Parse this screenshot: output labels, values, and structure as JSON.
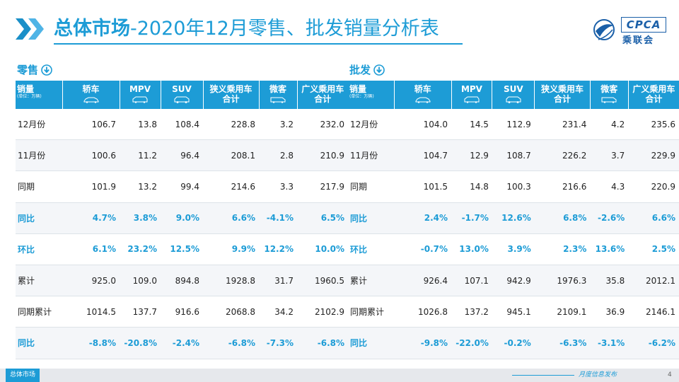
{
  "header": {
    "title_part1": "总体市场",
    "title_part2": "-2020年12月零售、批发销量分析表",
    "logo_text": "CPCA",
    "logo_sub": "乘联会"
  },
  "columns": {
    "first": "销量",
    "unit": "(单位：万辆)",
    "c1": "轿车",
    "c2": "MPV",
    "c3": "SUV",
    "c4a": "狭义乘用车",
    "c4b": "合计",
    "c5": "微客",
    "c6a": "广义乘用车",
    "c6b": "合计"
  },
  "retail": {
    "title": "零售",
    "rows": [
      {
        "label": "12月份",
        "v": [
          "106.7",
          "13.8",
          "108.4",
          "228.8",
          "3.2",
          "232.0"
        ]
      },
      {
        "label": "11月份",
        "v": [
          "100.6",
          "11.2",
          "96.4",
          "208.1",
          "2.8",
          "210.9"
        ]
      },
      {
        "label": "同期",
        "v": [
          "101.9",
          "13.2",
          "99.4",
          "214.6",
          "3.3",
          "217.9"
        ]
      },
      {
        "label": "同比",
        "v": [
          "4.7%",
          "3.8%",
          "9.0%",
          "6.6%",
          "-4.1%",
          "6.5%"
        ]
      },
      {
        "label": "环比",
        "v": [
          "6.1%",
          "23.2%",
          "12.5%",
          "9.9%",
          "12.2%",
          "10.0%"
        ]
      },
      {
        "label": "累计",
        "v": [
          "925.0",
          "109.0",
          "894.8",
          "1928.8",
          "31.7",
          "1960.5"
        ]
      },
      {
        "label": "同期累计",
        "v": [
          "1014.5",
          "137.7",
          "916.6",
          "2068.8",
          "34.2",
          "2102.9"
        ]
      },
      {
        "label": "同比",
        "v": [
          "-8.8%",
          "-20.8%",
          "-2.4%",
          "-6.8%",
          "-7.3%",
          "-6.8%"
        ]
      }
    ]
  },
  "wholesale": {
    "title": "批发",
    "rows": [
      {
        "label": "12月份",
        "v": [
          "104.0",
          "14.5",
          "112.9",
          "231.4",
          "4.2",
          "235.6"
        ]
      },
      {
        "label": "11月份",
        "v": [
          "104.7",
          "12.9",
          "108.7",
          "226.2",
          "3.7",
          "229.9"
        ]
      },
      {
        "label": "同期",
        "v": [
          "101.5",
          "14.8",
          "100.3",
          "216.6",
          "4.3",
          "220.9"
        ]
      },
      {
        "label": "同比",
        "v": [
          "2.4%",
          "-1.7%",
          "12.6%",
          "6.8%",
          "-2.6%",
          "6.6%"
        ]
      },
      {
        "label": "环比",
        "v": [
          "-0.7%",
          "13.0%",
          "3.9%",
          "2.3%",
          "13.6%",
          "2.5%"
        ]
      },
      {
        "label": "累计",
        "v": [
          "926.4",
          "107.1",
          "942.9",
          "1976.3",
          "35.8",
          "2012.1"
        ]
      },
      {
        "label": "同期累计",
        "v": [
          "1026.8",
          "137.2",
          "945.1",
          "2109.1",
          "36.9",
          "2146.1"
        ]
      },
      {
        "label": "同比",
        "v": [
          "-9.8%",
          "-22.0%",
          "-0.2%",
          "-6.3%",
          "-3.1%",
          "-6.2%"
        ]
      }
    ]
  },
  "footer": {
    "tabs": [
      "总体市场",
      "",
      "",
      ""
    ],
    "release": "月度信息发布",
    "page": "4"
  },
  "colors": {
    "accent": "#1d9cd6",
    "brand": "#1a5fa8"
  }
}
